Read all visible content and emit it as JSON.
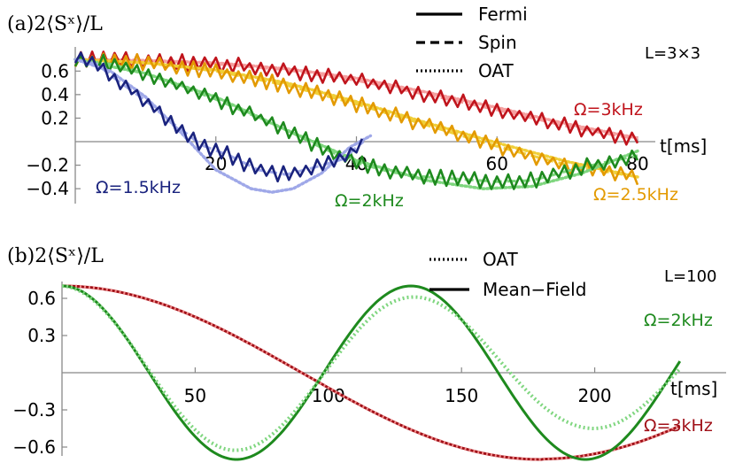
{
  "chart_data": [
    {
      "type": "line",
      "panel_label": "(a)",
      "ylabel": "2⟨Sˣ⟩/L",
      "xlabel": "t[ms]",
      "annotation": "L=3×3",
      "xlim": [
        0,
        80
      ],
      "ylim": [
        -0.45,
        0.75
      ],
      "xticks": [
        20,
        40,
        60,
        80
      ],
      "yticks": [
        -0.4,
        -0.2,
        0.2,
        0.4,
        0.6
      ],
      "ytick_labels": [
        "−0.4",
        "−0.2",
        "0.2",
        "0.4",
        "0.6"
      ],
      "legend": [
        {
          "label": "Fermi",
          "style": "solid"
        },
        {
          "label": "Spin",
          "style": "dashed"
        },
        {
          "label": "OAT",
          "style": "dotted"
        }
      ],
      "series": [
        {
          "name": "Ω=1.5kHz",
          "color": "#1a237e",
          "light_color": "#9fa8e8",
          "fermi_x": [
            0,
            3,
            6,
            10,
            14,
            18,
            22,
            26,
            30,
            34,
            38,
            41
          ],
          "fermi_y": [
            0.7,
            0.66,
            0.52,
            0.35,
            0.15,
            -0.03,
            -0.12,
            -0.24,
            -0.28,
            -0.22,
            -0.15,
            0.0
          ],
          "oat_x": [
            0,
            5,
            10,
            15,
            20,
            25,
            28,
            31,
            35,
            39,
            42
          ],
          "oat_y": [
            0.7,
            0.6,
            0.38,
            0.08,
            -0.24,
            -0.4,
            -0.43,
            -0.4,
            -0.27,
            -0.05,
            0.05
          ]
        },
        {
          "name": "Ω=2kHz",
          "color": "#1e8a1e",
          "light_color": "#7fd67f",
          "fermi_x": [
            0,
            5,
            10,
            15,
            20,
            25,
            30,
            35,
            40,
            45,
            50,
            55,
            60,
            65,
            70,
            75,
            80
          ],
          "fermi_y": [
            0.7,
            0.66,
            0.58,
            0.47,
            0.36,
            0.23,
            0.1,
            -0.05,
            -0.18,
            -0.26,
            -0.3,
            -0.32,
            -0.34,
            -0.33,
            -0.25,
            -0.18,
            -0.12
          ],
          "oat_x": [
            0,
            10,
            20,
            30,
            40,
            50,
            58,
            65,
            72,
            80
          ],
          "oat_y": [
            0.7,
            0.58,
            0.38,
            0.1,
            -0.16,
            -0.33,
            -0.4,
            -0.38,
            -0.27,
            -0.08
          ]
        },
        {
          "name": "Ω=2.5kHz",
          "color": "#e39a00",
          "light_color": "#f0cf3a",
          "fermi_x": [
            0,
            10,
            20,
            30,
            40,
            50,
            60,
            70,
            80
          ],
          "fermi_y": [
            0.7,
            0.67,
            0.6,
            0.48,
            0.32,
            0.14,
            -0.04,
            -0.2,
            -0.3
          ],
          "oat_x": [
            0,
            10,
            20,
            30,
            40,
            50,
            60,
            70,
            80
          ],
          "oat_y": [
            0.7,
            0.67,
            0.61,
            0.5,
            0.34,
            0.16,
            -0.01,
            -0.17,
            -0.3
          ]
        },
        {
          "name": "Ω=3kHz",
          "color": "#c0141c",
          "light_color": "#f5a0a0",
          "fermi_x": [
            0,
            10,
            20,
            30,
            40,
            50,
            60,
            70,
            80
          ],
          "fermi_y": [
            0.7,
            0.69,
            0.66,
            0.61,
            0.52,
            0.4,
            0.27,
            0.13,
            0.02
          ],
          "oat_x": [
            0,
            10,
            20,
            30,
            40,
            50,
            60,
            70,
            80
          ],
          "oat_y": [
            0.7,
            0.69,
            0.67,
            0.62,
            0.54,
            0.42,
            0.29,
            0.15,
            0.03
          ]
        }
      ]
    },
    {
      "type": "line",
      "panel_label": "(b)",
      "ylabel": "2⟨Sˣ⟩/L",
      "xlabel": "t[ms]",
      "annotation": "L=100",
      "xlim": [
        0,
        240
      ],
      "ylim": [
        -0.72,
        0.72
      ],
      "xticks": [
        50,
        100,
        150,
        200
      ],
      "yticks": [
        -0.6,
        -0.3,
        0.3,
        0.6
      ],
      "ytick_labels": [
        "−0.6",
        "−0.3",
        "0.3",
        "0.6"
      ],
      "legend": [
        {
          "label": "OAT",
          "style": "dotted"
        },
        {
          "label": "Mean−Field",
          "style": "solid"
        }
      ],
      "series": [
        {
          "name": "Ω=2kHz",
          "color": "#1e8a1e",
          "light_color": "#7fd67f",
          "mean_field": {
            "amplitude": 0.7,
            "period_ms": 131,
            "decay": 0,
            "t_end": 232
          },
          "oat": {
            "amplitude_start": 0.7,
            "amplitude_min": -0.7,
            "second_max": 0.58,
            "second_min": -0.46,
            "end_value": 0.14,
            "t_end": 232
          }
        },
        {
          "name": "Ω=3kHz",
          "color": "#a01018",
          "light_color": "#f08a8a",
          "mean_field": {
            "amplitude": 0.7,
            "min_value": -0.72,
            "t_min": 180,
            "end_value": -0.25,
            "t_end": 232
          },
          "oat": {
            "amplitude": 0.7,
            "min_value": -0.72,
            "t_min": 180,
            "end_value": -0.25,
            "t_end": 232
          }
        }
      ]
    }
  ]
}
